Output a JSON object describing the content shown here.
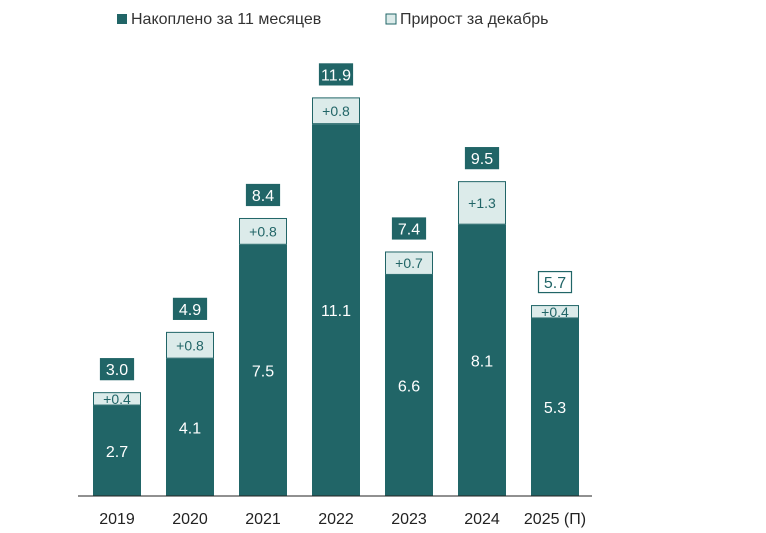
{
  "colors": {
    "base": "#216567",
    "increment": "#dcebea",
    "base_label": "#ffffff",
    "increment_label": "#216567",
    "axis": "#222222"
  },
  "chart_data": {
    "type": "bar",
    "stacked": true,
    "categories": [
      "2019",
      "2020",
      "2021",
      "2022",
      "2023",
      "2024",
      "2025 (П)"
    ],
    "series": [
      {
        "name": "Накоплено за 11 месяцев",
        "values": [
          2.7,
          4.1,
          7.5,
          11.1,
          6.6,
          8.1,
          5.3
        ],
        "labels": [
          "2.7",
          "4.1",
          "7.5",
          "11.1",
          "6.6",
          "8.1",
          "5.3"
        ]
      },
      {
        "name": "Прирост за декабрь",
        "values": [
          0.4,
          0.8,
          0.8,
          0.8,
          0.7,
          1.3,
          0.4
        ],
        "labels": [
          "+0.4",
          "+0.8",
          "+0.8",
          "+0.8",
          "+0.7",
          "+1.3",
          "+0.4"
        ]
      }
    ],
    "totals": [
      3.0,
      4.9,
      8.4,
      11.9,
      7.4,
      9.5,
      5.7
    ],
    "total_labels": [
      "3.0",
      "4.9",
      "8.4",
      "11.9",
      "7.4",
      "9.5",
      "5.7"
    ],
    "forecast_index": 6,
    "legend": [
      "Накоплено за 11 месяцев",
      "Прирост за декабрь"
    ],
    "legend_position": "top",
    "ylim": [
      0,
      12.3
    ],
    "grid": false
  }
}
